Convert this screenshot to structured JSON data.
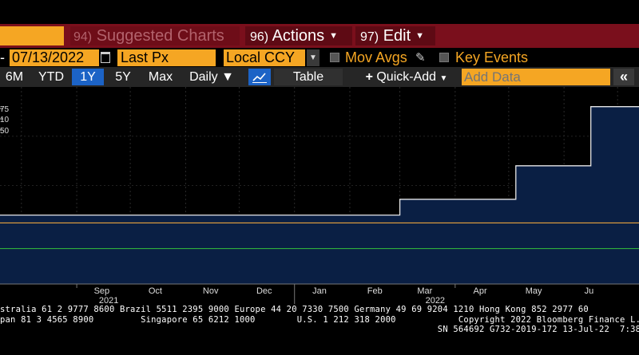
{
  "command_bar": {
    "suggested": {
      "num": "94)",
      "label": "Suggested Charts"
    },
    "actions": {
      "num": "96)",
      "label": "Actions"
    },
    "edit": {
      "num": "97)",
      "label": "Edit"
    }
  },
  "settings": {
    "date_dash": "-",
    "end_date": "07/13/2022",
    "price_type": "Last Px",
    "currency": "Local CCY",
    "mov_avgs_label": "Mov Avgs",
    "key_events_label": "Key Events"
  },
  "toolbar": {
    "six_month": "6M",
    "ytd": "YTD",
    "one_year": "1Y",
    "five_year": "5Y",
    "max": "Max",
    "frequency": "Daily",
    "table": "Table",
    "quick_add": "Quick-Add",
    "add_data_placeholder": "Add Data",
    "collapse": "«"
  },
  "colors": {
    "accent_orange": "#f5a623",
    "command_red": "#7a0f1c",
    "selected_blue": "#1c63c6",
    "area_fill": "#0a1f44",
    "orange_line": "#e8a33c",
    "green_line": "#2fae3c"
  },
  "chart_data": {
    "type": "area",
    "y_tick_labels_partial": [
      "75",
      "10",
      "50"
    ],
    "x_months": [
      "Sep",
      "Oct",
      "Nov",
      "Dec",
      "Jan",
      "Feb",
      "Mar",
      "Apr",
      "May",
      "Ju"
    ],
    "x_years": [
      "2021",
      "2022"
    ],
    "xlim": [
      "2021-07-20",
      "2022-07-13"
    ],
    "ylim": [
      0,
      100
    ],
    "series": [
      {
        "x": [
          "2021-07-20",
          "2022-03-01",
          "2022-03-01",
          "2022-05-05",
          "2022-05-05",
          "2022-06-16",
          "2022-06-16",
          "2022-07-13"
        ],
        "y": [
          35,
          35,
          43,
          43,
          60,
          60,
          90,
          90
        ]
      }
    ],
    "reference_lines": [
      {
        "y": 31,
        "color": "#e8a33c"
      },
      {
        "y": 18,
        "color": "#2fae3c"
      }
    ]
  },
  "footer": {
    "line1": "stralia 61 2 9777 8600 Brazil 5511 2395 9000 Europe 44 20 7330 7500 Germany 49 69 9204 1210 Hong Kong 852 2977 60",
    "line2": "pan 81 3 4565 8900         Singapore 65 6212 1000        U.S. 1 212 318 2000            Copyright 2022 Bloomberg Finance L.",
    "line3": "                                                                                    SN 564692 G732-2019-172 13-Jul-22  7:38"
  }
}
